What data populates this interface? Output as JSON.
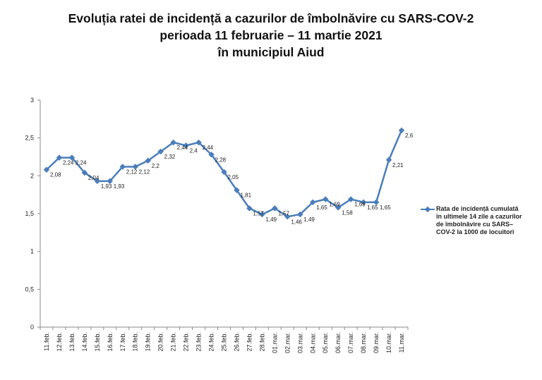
{
  "title": {
    "line1": "Evoluția ratei de incidență a cazurilor de îmbolnăvire cu SARS-COV-2",
    "line2": "perioada 11 februarie – 11 martie 2021",
    "line3": "în municipiul Aiud"
  },
  "legend": {
    "label": "Rata de incidență cumulată în ultimele 14 zile a cazurilor de îmbolnăvire cu SARS–COV-2 la 1000 de locuitori"
  },
  "colors": {
    "series": "#4a7ebb",
    "axis": "#888888"
  },
  "chart_data": {
    "type": "line",
    "title": "Evoluția ratei de incidență a cazurilor de îmbolnăvire cu SARS-COV-2 perioada 11 februarie – 11 martie 2021 în municipiul Aiud",
    "categories": [
      "11.feb.",
      "12.feb.",
      "13.feb.",
      "14.feb.",
      "15.feb.",
      "16.feb.",
      "17.feb.",
      "18.feb.",
      "19.feb.",
      "20.feb.",
      "21.feb.",
      "22.feb.",
      "23.feb.",
      "24.feb.",
      "25.feb.",
      "26.feb.",
      "27.feb.",
      "28.feb.",
      "01.mar.",
      "02.mar.",
      "03.mar.",
      "04.mar.",
      "05.mar.",
      "06.mar.",
      "07.mar.",
      "08.mar.",
      "09.mar.",
      "10.mar.",
      "11.mar."
    ],
    "series": [
      {
        "name": "Rata de incidență cumulată în ultimele 14 zile a cazurilor de îmbolnăvire cu SARS–COV-2 la 1000 de locuitori",
        "values": [
          2.08,
          2.24,
          2.24,
          2.04,
          1.93,
          1.93,
          2.12,
          2.12,
          2.2,
          2.32,
          2.44,
          2.4,
          2.44,
          2.28,
          2.05,
          1.81,
          1.57,
          1.49,
          1.57,
          1.46,
          1.49,
          1.65,
          1.69,
          1.58,
          1.69,
          1.65,
          1.65,
          2.21,
          2.6
        ],
        "labels": [
          "2,08",
          "2,24",
          "2,24",
          "2,04",
          "1,93",
          "1,93",
          "2,12",
          "2,12",
          "2,2",
          "2,32",
          "2,44",
          "2,4",
          "2,44",
          "2,28",
          "2,05",
          "1,81",
          "1,57",
          "1,49",
          "1,57",
          "1,46",
          "1,49",
          "1,65",
          "1,69",
          "1,58",
          "1,69",
          "1,65",
          "1,65",
          "2,21",
          "2,6"
        ]
      }
    ],
    "yticks": [
      "0",
      "0,5",
      "1",
      "1,5",
      "2",
      "2,5",
      "3"
    ],
    "ylim": [
      0,
      3
    ],
    "grid": false,
    "legend_position": "right"
  }
}
